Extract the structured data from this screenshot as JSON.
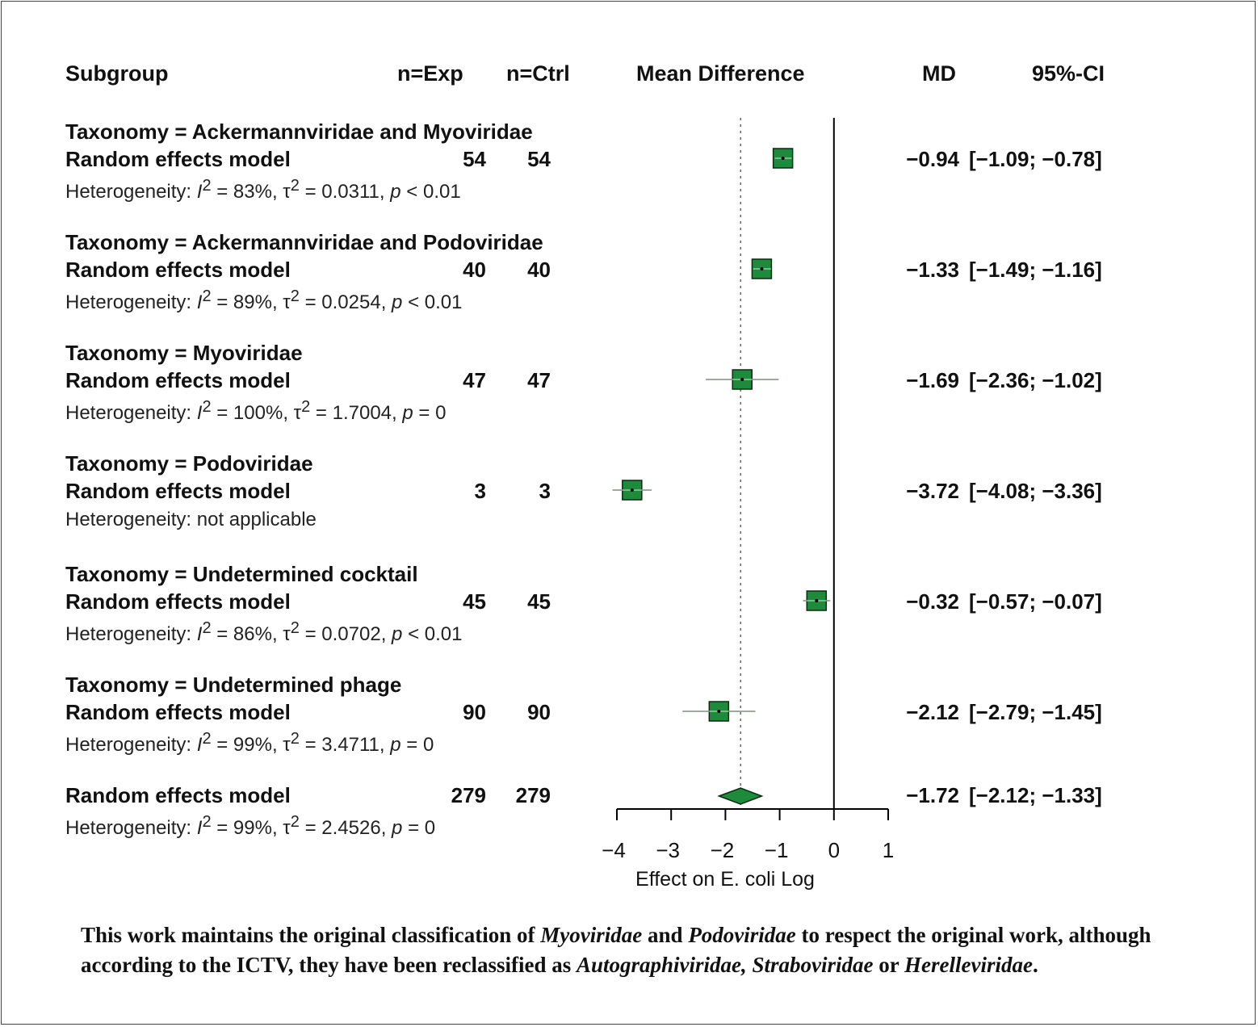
{
  "headers": {
    "subgroup": "Subgroup",
    "n_exp": "n=Exp",
    "n_ctrl": "n=Ctrl",
    "mean_difference": "Mean Difference",
    "md": "MD",
    "ci": "95%-CI"
  },
  "groups": [
    {
      "title": "Taxonomy = Ackermannviridae and Myoviridae",
      "model": "Random effects model",
      "n_exp": "54",
      "n_ctrl": "54",
      "het_prefix": "Heterogeneity: ",
      "i2": "83%",
      "tau2": "0.0311",
      "p": "< 0.01",
      "het_text": "",
      "md": "−0.94",
      "ci": "[−1.09; −0.78]"
    },
    {
      "title": "Taxonomy = Ackermannviridae and Podoviridae",
      "model": "Random effects model",
      "n_exp": "40",
      "n_ctrl": "40",
      "het_prefix": "Heterogeneity: ",
      "i2": "89%",
      "tau2": "0.0254",
      "p": "< 0.01",
      "het_text": "",
      "md": "−1.33",
      "ci": "[−1.49; −1.16]"
    },
    {
      "title": "Taxonomy = Myoviridae",
      "model": "Random effects model",
      "n_exp": "47",
      "n_ctrl": "47",
      "het_prefix": "Heterogeneity: ",
      "i2": "100%",
      "tau2": "1.7004",
      "p": "= 0",
      "het_text": "",
      "md": "−1.69",
      "ci": "[−2.36; −1.02]"
    },
    {
      "title": "Taxonomy = Podoviridae",
      "model": "Random effects model",
      "n_exp": "3",
      "n_ctrl": "3",
      "het_prefix": "",
      "i2": "",
      "tau2": "",
      "p": "",
      "het_text": "Heterogeneity: not applicable",
      "md": "−3.72",
      "ci": "[−4.08; −3.36]"
    },
    {
      "title": "Taxonomy = Undetermined cocktail",
      "model": "Random effects model",
      "n_exp": "45",
      "n_ctrl": "45",
      "het_prefix": "Heterogeneity: ",
      "i2": "86%",
      "tau2": "0.0702",
      "p": "< 0.01",
      "het_text": "",
      "md": "−0.32",
      "ci": "[−0.57; −0.07]"
    },
    {
      "title": "Taxonomy = Undetermined phage",
      "model": "Random effects model",
      "n_exp": "90",
      "n_ctrl": "90",
      "het_prefix": "Heterogeneity: ",
      "i2": "99%",
      "tau2": "3.4711",
      "p": "= 0",
      "het_text": "",
      "md": "−2.12",
      "ci": "[−2.79; −1.45]"
    }
  ],
  "overall": {
    "model": "Random effects model",
    "n_exp": "279",
    "n_ctrl": "279",
    "het_prefix": "Heterogeneity: ",
    "i2": "99%",
    "tau2": "2.4526",
    "p": "= 0",
    "md": "−1.72",
    "ci": "[−2.12; −1.33]"
  },
  "note": {
    "p1": "This work maintains the original classification of ",
    "i1": "Myoviridae",
    "p2": " and ",
    "i2": "Podoviridae",
    "p3": " to respect the original work, although according to the ICTV, they have been reclassified as ",
    "i3": "Autographiviridae, Straboviridae",
    "p4": " or ",
    "i4": "Herelleviridae",
    "p5": "."
  },
  "chart_data": {
    "type": "forest",
    "xlabel": "Effect on E. coli Log",
    "xlim": [
      -4,
      1
    ],
    "ticks": [
      -4,
      -3,
      -2,
      -1,
      0,
      1
    ],
    "tick_labels": [
      "−4",
      "−3",
      "−2",
      "−1",
      "0",
      "1"
    ],
    "null_line": 0,
    "reference_line": -1.72,
    "marker_color": "#1e8a3c",
    "series": [
      {
        "name": "Taxonomy = Ackermannviridae and Myoviridae",
        "md": -0.94,
        "lower": -1.09,
        "upper": -0.78
      },
      {
        "name": "Taxonomy = Ackermannviridae and Podoviridae",
        "md": -1.33,
        "lower": -1.49,
        "upper": -1.16
      },
      {
        "name": "Taxonomy = Myoviridae",
        "md": -1.69,
        "lower": -2.36,
        "upper": -1.02
      },
      {
        "name": "Taxonomy = Podoviridae",
        "md": -3.72,
        "lower": -4.08,
        "upper": -3.36
      },
      {
        "name": "Taxonomy = Undetermined cocktail",
        "md": -0.32,
        "lower": -0.57,
        "upper": -0.07
      },
      {
        "name": "Taxonomy = Undetermined phage",
        "md": -2.12,
        "lower": -2.79,
        "upper": -1.45
      }
    ],
    "overall": {
      "md": -1.72,
      "lower": -2.12,
      "upper": -1.33
    }
  }
}
